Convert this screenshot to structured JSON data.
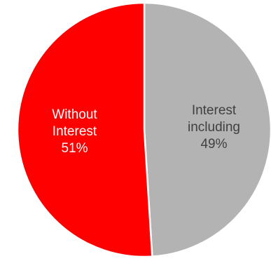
{
  "chart_data": {
    "type": "pie",
    "title": "",
    "slices": [
      {
        "category": "Interest including",
        "category_lines": [
          "Interest",
          "including"
        ],
        "value": 49,
        "value_label": "49%",
        "color": "#b3b3b3",
        "text_color": "#404040"
      },
      {
        "category": "Without Interest",
        "category_lines": [
          "Without",
          "Interest"
        ],
        "value": 51,
        "value_label": "51%",
        "color": "#ff0000",
        "text_color": "#ffffff"
      }
    ],
    "start_angle_deg": 0,
    "direction": "clockwise",
    "slice_border_color": "#ffffff",
    "legend": "none"
  }
}
